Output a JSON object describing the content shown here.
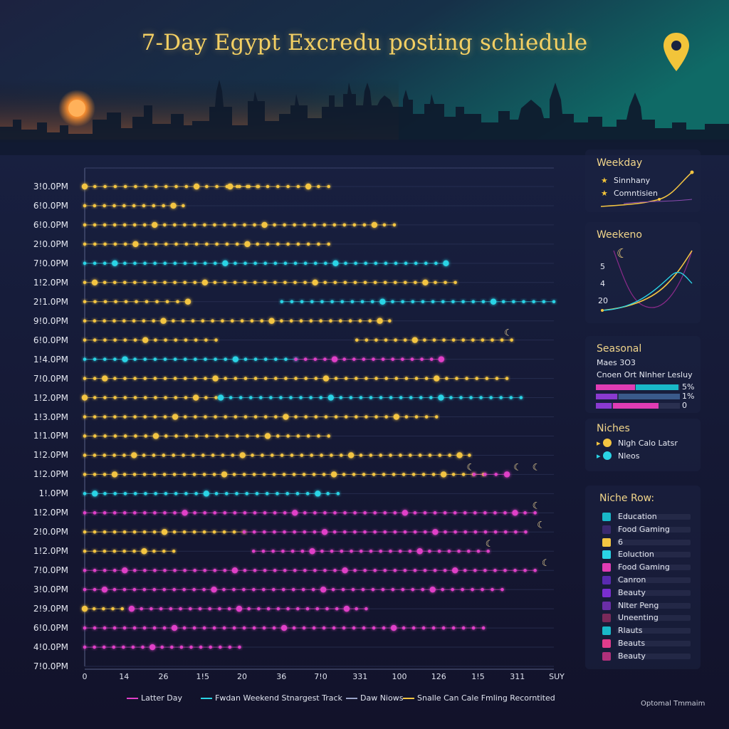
{
  "title": "7-Day Egypt Excredu posting schiedule",
  "chart_data": {
    "type": "scatter",
    "title": "7-Day Egypt Excredu posting schiedule",
    "y_categories": [
      "3!0.0PM",
      "6!0.0PM",
      "6!0.0PM",
      "2!0.0PM",
      "7!0.0PM",
      "1!2.0PM",
      "2!1.0PM",
      "9!0.0PM",
      "6!0.0PM",
      "1!4.0PM",
      "7!0.0PM",
      "1!2.0PM",
      "1!3.0PM",
      "1!1.0PM",
      "1!2.0PM",
      "1!2.0PM",
      "1!.0PM",
      "1!2.0PM",
      "2!0.0PM",
      "1!2.0PM",
      "7!0.0PM",
      "3!0.0PM",
      "2!9.0PM",
      "6!0.0PM",
      "4!0.0PM",
      "7!0.0PM"
    ],
    "x_tick_labels": [
      "0",
      "14",
      "26",
      "1!5",
      "20",
      "36",
      "7!0",
      "331",
      "100",
      "126",
      "1!5",
      "311",
      "SUY"
    ],
    "legend": [
      {
        "name": "Latter Day",
        "color": "#e040c8"
      },
      {
        "name": "Fwdan Weekend Stnargest Track",
        "color": "#2ad4e6"
      },
      {
        "name": "Daw Niows",
        "color": "#9aa3c8"
      },
      {
        "name": "Snalle Can Cale Fmling Recorntited",
        "color": "#f4c542"
      }
    ],
    "grid": true,
    "legend_position": "bottom",
    "series": [
      {
        "name": "Snalle Can Cale Fmling Recorntited",
        "color": "#f4c542",
        "points": [
          [
            0,
            0.0,
            0.52
          ],
          [
            0,
            0.31,
            0.37
          ],
          [
            1,
            0.0,
            0.21
          ],
          [
            2,
            0.0,
            0.66
          ],
          [
            3,
            0.0,
            0.52
          ],
          [
            5,
            0.0,
            0.79
          ],
          [
            6,
            0.0,
            0.22
          ],
          [
            7,
            0.0,
            0.65
          ],
          [
            8,
            0.0,
            0.28
          ],
          [
            8,
            0.58,
            0.91
          ],
          [
            10,
            0.0,
            0.9
          ],
          [
            11,
            0.0,
            0.28
          ],
          [
            12,
            0.0,
            0.75
          ],
          [
            13,
            0.0,
            0.52
          ],
          [
            14,
            0.0,
            0.82
          ],
          [
            15,
            0.0,
            0.85
          ],
          [
            18,
            0.0,
            0.34
          ],
          [
            19,
            0.0,
            0.19
          ],
          [
            22,
            0.0,
            0.08
          ]
        ]
      },
      {
        "name": "Fwdan Weekend Stnargest Track",
        "color": "#2ad4e6",
        "points": [
          [
            4,
            0.0,
            0.77
          ],
          [
            6,
            0.42,
            1.0
          ],
          [
            9,
            0.0,
            0.45
          ],
          [
            11,
            0.29,
            0.93
          ],
          [
            16,
            0.0,
            0.54
          ]
        ]
      },
      {
        "name": "Latter Day",
        "color": "#e040c8",
        "points": [
          [
            9,
            0.45,
            0.76
          ],
          [
            15,
            0.83,
            0.9
          ],
          [
            17,
            0.0,
            0.96
          ],
          [
            18,
            0.34,
            0.94
          ],
          [
            19,
            0.36,
            0.86
          ],
          [
            20,
            0.0,
            0.96
          ],
          [
            21,
            0.0,
            0.89
          ],
          [
            22,
            0.1,
            0.6
          ],
          [
            23,
            0.0,
            0.85
          ],
          [
            24,
            0.0,
            0.33
          ]
        ]
      }
    ]
  },
  "panels": {
    "weekday": {
      "title": "Weekday",
      "items": [
        "Sinnhany",
        "Comntisien"
      ]
    },
    "weekend": {
      "title": "Weekeno",
      "ticks": [
        "5",
        "4",
        "20"
      ]
    },
    "seasonal": {
      "title": "Seasonal",
      "line1": "Maes 3O3",
      "line2": "Cnoen Ort Nlnher Lesluy",
      "values": [
        "5%",
        "1%",
        "0"
      ]
    },
    "niches": {
      "title": "Niches",
      "items": [
        "Nlgh Calo Latsr",
        "Nleos"
      ]
    },
    "niche_row": {
      "title": "Niche Row:",
      "items": [
        {
          "label": "Education",
          "color": "#19b8c8"
        },
        {
          "label": "Food Gaming",
          "color": "#3a2a6e"
        },
        {
          "label": "6",
          "color": "#f4c542"
        },
        {
          "label": "Eoluction",
          "color": "#2ad4e6"
        },
        {
          "label": "Food Gaming",
          "color": "#e03cb4"
        },
        {
          "label": "Canron",
          "color": "#5a2ab0"
        },
        {
          "label": "Beauty",
          "color": "#7a2ed0"
        },
        {
          "label": "Nlter Peng",
          "color": "#6a2ea8"
        },
        {
          "label": "Uneenting",
          "color": "#7a2a5a"
        },
        {
          "label": "Rlauts",
          "color": "#19b8c8"
        },
        {
          "label": "Beauts",
          "color": "#e03c8c"
        },
        {
          "label": "Beauty",
          "color": "#b0307a"
        }
      ]
    }
  },
  "footnote": "Optomal Tmmaim"
}
